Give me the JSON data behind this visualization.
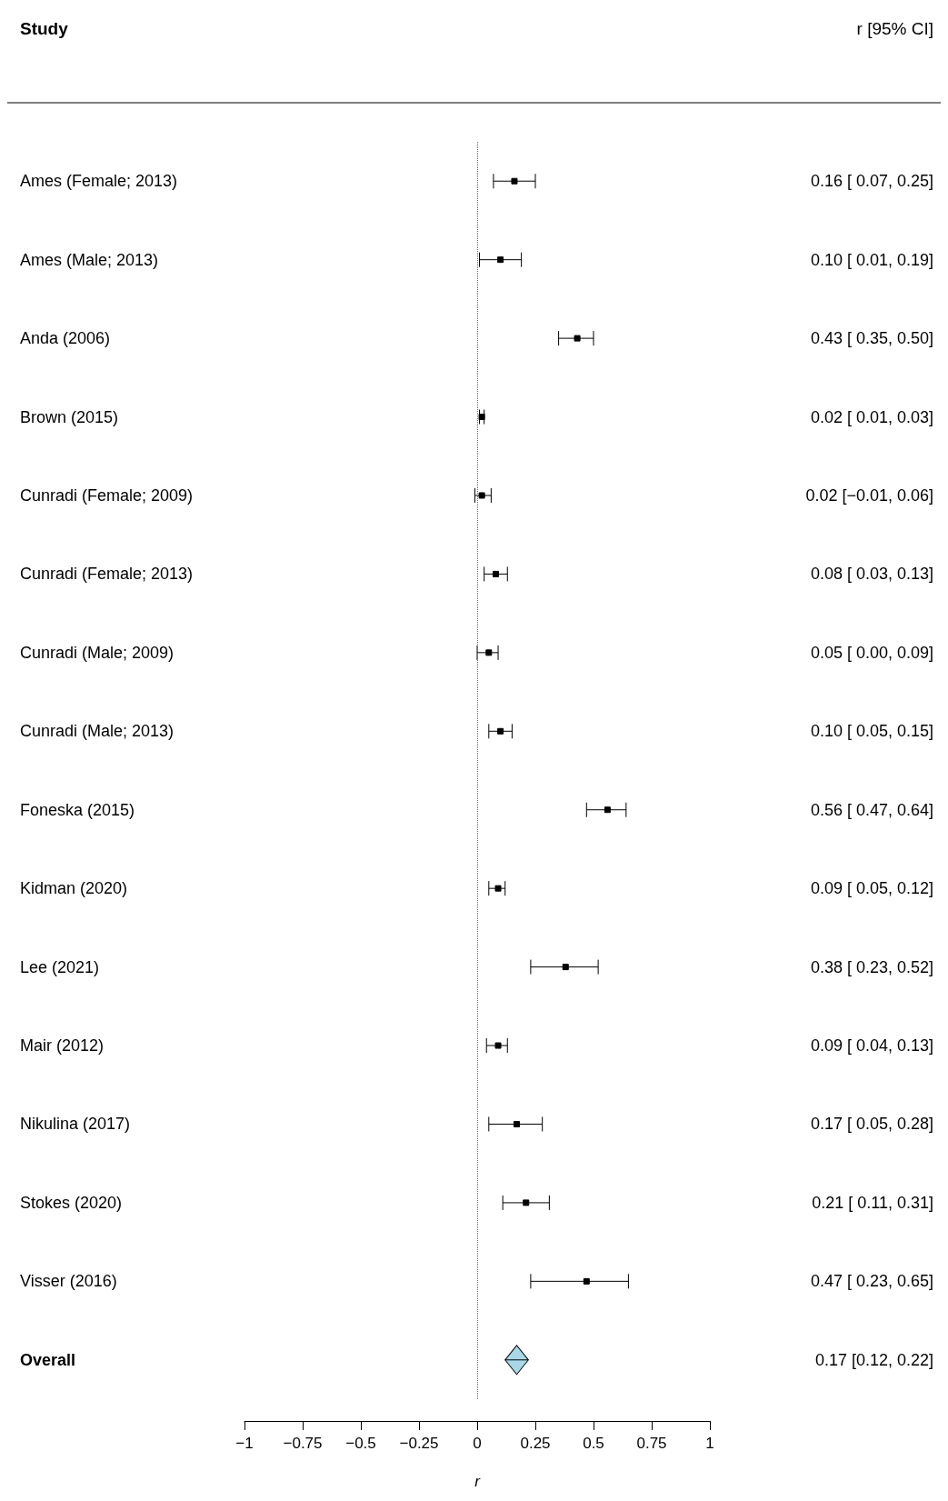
{
  "chart_data": {
    "type": "scatter",
    "orientation": "horizontal",
    "annotations": [
      "Study",
      "r [95% CI]"
    ],
    "xlabel": "r",
    "categories": [
      "Ames (Female; 2013)",
      "Ames (Male; 2013)",
      "Anda (2006)",
      "Brown (2015)",
      "Cunradi (Female; 2009)",
      "Cunradi (Female; 2013)",
      "Cunradi (Male; 2009)",
      "Cunradi (Male; 2013)",
      "Foneska (2015)",
      "Kidman (2020)",
      "Lee (2021)",
      "Mair (2012)",
      "Nikulina (2017)",
      "Stokes (2020)",
      "Visser (2016)",
      "Overall"
    ],
    "series": [
      {
        "color": "#000000",
        "marker": "square",
        "colors": [
          "#000000",
          "#000000",
          "#000000",
          "#000000",
          "#000000",
          "#000000",
          "#000000",
          "#000000",
          "#000000",
          "#000000",
          "#000000",
          "#000000",
          "#000000",
          "#000000",
          "#000000",
          "#a8d8e8"
        ],
        "values": [
          0.16,
          0.1,
          0.43,
          0.02,
          0.02,
          0.08,
          0.05,
          0.1,
          0.56,
          0.09,
          0.38,
          0.09,
          0.17,
          0.21,
          0.47,
          0.17
        ],
        "errors": [
          [
            0.07,
            0.25
          ],
          [
            0.01,
            0.19
          ],
          [
            0.35,
            0.5
          ],
          [
            0.01,
            0.03
          ],
          [
            -0.01,
            0.06
          ],
          [
            0.03,
            0.13
          ],
          [
            0.0,
            0.09
          ],
          [
            0.05,
            0.15
          ],
          [
            0.47,
            0.64
          ],
          [
            0.05,
            0.12
          ],
          [
            0.23,
            0.52
          ],
          [
            0.04,
            0.13
          ],
          [
            0.05,
            0.28
          ],
          [
            0.11,
            0.31
          ],
          [
            0.23,
            0.65
          ],
          [
            0.12,
            0.22
          ]
        ],
        "value_labels": [
          "0.16 [ 0.07, 0.25]",
          "0.10 [ 0.01, 0.19]",
          "0.43 [ 0.35, 0.50]",
          "0.02 [ 0.01, 0.03]",
          "0.02 [−0.01, 0.06]",
          "0.08 [ 0.03, 0.13]",
          "0.05 [ 0.00, 0.09]",
          "0.10 [ 0.05, 0.15]",
          "0.56 [ 0.47, 0.64]",
          "0.09 [ 0.05, 0.12]",
          "0.38 [ 0.23, 0.52]",
          "0.09 [ 0.04, 0.13]",
          "0.17 [ 0.05, 0.28]",
          "0.21 [ 0.11, 0.31]",
          "0.47 [ 0.23, 0.65]",
          "0.17 [0.12, 0.22]"
        ]
      }
    ],
    "xlim": [
      -1,
      1
    ],
    "xticks": [
      {
        "value": -1,
        "label": "−1"
      },
      {
        "value": -0.75,
        "label": "−0.75"
      },
      {
        "value": -0.5,
        "label": "−0.5"
      },
      {
        "value": -0.25,
        "label": "−0.25"
      },
      0,
      0.25,
      0.5,
      0.75,
      1
    ],
    "ref_lines": [
      {
        "axis": "x",
        "value": 0,
        "line_style": "dotted"
      }
    ]
  }
}
